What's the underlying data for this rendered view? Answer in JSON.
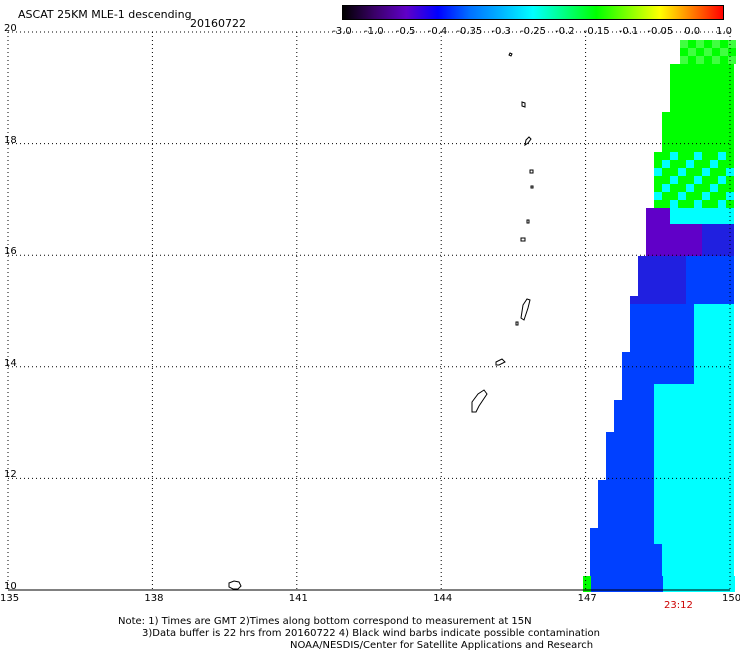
{
  "map": {
    "title": "ASCAT 25KM MLE-1 descending",
    "date": "20160722",
    "lat_ticks": [
      "20",
      "18",
      "16",
      "14",
      "12",
      "10"
    ],
    "lon_ticks": [
      "135",
      "138",
      "141",
      "144",
      "147",
      "150"
    ],
    "time_label": "23:12",
    "lat_range": [
      10,
      20
    ],
    "lon_range": [
      135,
      150
    ]
  },
  "colorbar": {
    "labels": [
      "-3.0",
      "-1.0",
      "-0.5",
      "-0.4",
      "-0.35",
      "-0.3",
      "-0.25",
      "-0.2",
      "-0.15",
      "-0.1",
      "-0.05",
      "0.0",
      "1.0"
    ],
    "colors": [
      "#000000",
      "#3a0068",
      "#6000c8",
      "#0000ff",
      "#0070ff",
      "#00b4ff",
      "#00ffff",
      "#00ff80",
      "#00ff00",
      "#80ff00",
      "#ffff00",
      "#ff8000",
      "#ff0000"
    ]
  },
  "notes": {
    "line1": "Note: 1) Times are GMT 2)Times along bottom correspond to measurement at 15N",
    "line2": "3)Data buffer is 22 hrs from 20160722 4) Black wind barbs indicate possible contamination",
    "line3": "NOAA/NESDIS/Center for Satellite Applications and Research"
  },
  "swath_colors": {
    "green": "#00ff00",
    "lightgreen": "#40ff40",
    "cyan": "#00ffff",
    "blue": "#0040ff",
    "darkblue": "#2020e0",
    "purple": "#6000c8"
  }
}
